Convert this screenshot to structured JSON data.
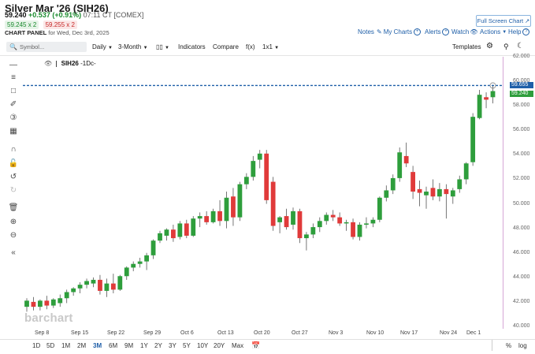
{
  "header": {
    "title": "Silver Mar '26 (SIH26)",
    "last": "59.240",
    "change": "+0.537 (+0.91%)",
    "timestamp": "07:11 CT [COMEX]",
    "bid": "59.245 x 2",
    "ask": "59.255 x 2",
    "panel_label": "CHART PANEL",
    "panel_date": "for Wed, Dec 3rd, 2025",
    "fullscreen": "Full Screen Chart",
    "notes": "Notes",
    "mycharts": "My Charts",
    "alerts": "Alerts",
    "watch": "Watch",
    "actions": "Actions",
    "help": "Help"
  },
  "toolbar": {
    "search_placeholder": "Symbol...",
    "interval": "Daily",
    "period": "3-Month",
    "indicators": "Indicators",
    "compare": "Compare",
    "fx": "f(x)",
    "layout": "1x1",
    "templates": "Templates"
  },
  "legend": {
    "symbol": "SIH26",
    "interval": "-1Dc-"
  },
  "watermark": "barchart",
  "yaxis": {
    "labels": [
      "62.000",
      "60.000",
      "58.000",
      "56.000",
      "54.000",
      "52.000",
      "50.000",
      "48.000",
      "46.000",
      "44.000",
      "42.000",
      "40.000"
    ],
    "high_label": "59.655",
    "last_label": "59.240"
  },
  "xaxis": {
    "labels": [
      "Sep 8",
      "Sep 15",
      "Sep 22",
      "Sep 29",
      "Oct 6",
      "Oct 13",
      "Oct 20",
      "Oct 27",
      "Nov 3",
      "Nov 10",
      "Nov 17",
      "Nov 24",
      "Dec 1"
    ]
  },
  "ranges": [
    "1D",
    "5D",
    "1M",
    "2M",
    "3M",
    "6M",
    "9M",
    "1Y",
    "2Y",
    "3Y",
    "5Y",
    "10Y",
    "20Y",
    "Max"
  ],
  "active_range": "3M",
  "bottom_right": {
    "percent": "%",
    "log": "log"
  },
  "colors": {
    "up": "#2e9e3c",
    "down": "#e03a3a",
    "link": "#1f5fa8",
    "dashed": "#1f5fa8"
  },
  "chart_data": {
    "type": "candlestick",
    "ylim": [
      40,
      62
    ],
    "candles": [
      {
        "o": 41.6,
        "h": 42.3,
        "l": 41.2,
        "c": 42.1
      },
      {
        "o": 42.0,
        "h": 42.4,
        "l": 41.3,
        "c": 41.6
      },
      {
        "o": 41.6,
        "h": 42.2,
        "l": 41.3,
        "c": 42.1
      },
      {
        "o": 42.1,
        "h": 42.5,
        "l": 41.4,
        "c": 41.7
      },
      {
        "o": 41.7,
        "h": 42.3,
        "l": 41.5,
        "c": 42.2
      },
      {
        "o": 41.9,
        "h": 42.6,
        "l": 41.6,
        "c": 42.3
      },
      {
        "o": 42.3,
        "h": 43.0,
        "l": 41.9,
        "c": 42.8
      },
      {
        "o": 42.8,
        "h": 43.2,
        "l": 42.5,
        "c": 43.1
      },
      {
        "o": 43.1,
        "h": 43.6,
        "l": 42.7,
        "c": 43.4
      },
      {
        "o": 43.4,
        "h": 43.9,
        "l": 43.1,
        "c": 43.7
      },
      {
        "o": 43.5,
        "h": 44.0,
        "l": 43.2,
        "c": 43.8
      },
      {
        "o": 43.8,
        "h": 44.2,
        "l": 42.6,
        "c": 42.9
      },
      {
        "o": 42.9,
        "h": 43.9,
        "l": 42.4,
        "c": 43.5
      },
      {
        "o": 43.5,
        "h": 44.3,
        "l": 42.7,
        "c": 43.0
      },
      {
        "o": 43.0,
        "h": 44.2,
        "l": 42.9,
        "c": 44.1
      },
      {
        "o": 44.1,
        "h": 44.9,
        "l": 43.8,
        "c": 44.8
      },
      {
        "o": 44.8,
        "h": 45.3,
        "l": 44.5,
        "c": 45.1
      },
      {
        "o": 45.1,
        "h": 45.6,
        "l": 44.8,
        "c": 45.3
      },
      {
        "o": 45.3,
        "h": 46.0,
        "l": 44.6,
        "c": 45.8
      },
      {
        "o": 45.8,
        "h": 47.1,
        "l": 45.5,
        "c": 47.0
      },
      {
        "o": 47.0,
        "h": 47.8,
        "l": 46.8,
        "c": 47.6
      },
      {
        "o": 47.4,
        "h": 48.0,
        "l": 47.0,
        "c": 47.9
      },
      {
        "o": 47.9,
        "h": 48.3,
        "l": 46.9,
        "c": 47.2
      },
      {
        "o": 47.3,
        "h": 48.6,
        "l": 47.1,
        "c": 48.4
      },
      {
        "o": 48.4,
        "h": 48.7,
        "l": 47.2,
        "c": 47.4
      },
      {
        "o": 47.4,
        "h": 49.0,
        "l": 47.3,
        "c": 48.8
      },
      {
        "o": 48.8,
        "h": 49.3,
        "l": 48.1,
        "c": 49.0
      },
      {
        "o": 49.0,
        "h": 49.4,
        "l": 48.3,
        "c": 48.5
      },
      {
        "o": 48.5,
        "h": 49.6,
        "l": 48.4,
        "c": 49.4
      },
      {
        "o": 49.4,
        "h": 50.3,
        "l": 48.2,
        "c": 48.6
      },
      {
        "o": 48.6,
        "h": 51.0,
        "l": 48.0,
        "c": 50.5
      },
      {
        "o": 50.6,
        "h": 51.3,
        "l": 48.2,
        "c": 48.9
      },
      {
        "o": 48.9,
        "h": 51.8,
        "l": 48.6,
        "c": 51.6
      },
      {
        "o": 51.6,
        "h": 52.5,
        "l": 51.2,
        "c": 52.2
      },
      {
        "o": 52.2,
        "h": 53.9,
        "l": 51.9,
        "c": 53.5
      },
      {
        "o": 53.6,
        "h": 54.4,
        "l": 52.9,
        "c": 54.1
      },
      {
        "o": 54.1,
        "h": 54.4,
        "l": 50.0,
        "c": 50.3
      },
      {
        "o": 51.8,
        "h": 52.2,
        "l": 47.8,
        "c": 48.2
      },
      {
        "o": 48.5,
        "h": 49.0,
        "l": 47.6,
        "c": 48.9
      },
      {
        "o": 49.0,
        "h": 49.6,
        "l": 47.9,
        "c": 48.1
      },
      {
        "o": 48.3,
        "h": 49.7,
        "l": 47.9,
        "c": 49.4
      },
      {
        "o": 49.4,
        "h": 49.6,
        "l": 46.8,
        "c": 47.2
      },
      {
        "o": 47.2,
        "h": 47.7,
        "l": 46.2,
        "c": 47.5
      },
      {
        "o": 47.5,
        "h": 48.4,
        "l": 47.2,
        "c": 48.1
      },
      {
        "o": 48.1,
        "h": 48.9,
        "l": 47.7,
        "c": 48.6
      },
      {
        "o": 48.6,
        "h": 49.3,
        "l": 48.3,
        "c": 49.1
      },
      {
        "o": 49.1,
        "h": 49.5,
        "l": 48.6,
        "c": 48.9
      },
      {
        "o": 48.9,
        "h": 49.3,
        "l": 48.2,
        "c": 48.4
      },
      {
        "o": 48.4,
        "h": 48.7,
        "l": 47.8,
        "c": 48.5
      },
      {
        "o": 48.5,
        "h": 48.8,
        "l": 47.1,
        "c": 47.3
      },
      {
        "o": 47.3,
        "h": 48.5,
        "l": 47.0,
        "c": 48.3
      },
      {
        "o": 48.3,
        "h": 48.9,
        "l": 48.0,
        "c": 48.4
      },
      {
        "o": 48.4,
        "h": 48.9,
        "l": 48.1,
        "c": 48.7
      },
      {
        "o": 48.7,
        "h": 50.6,
        "l": 48.5,
        "c": 50.5
      },
      {
        "o": 50.5,
        "h": 51.5,
        "l": 50.2,
        "c": 51.1
      },
      {
        "o": 51.1,
        "h": 52.4,
        "l": 50.8,
        "c": 52.1
      },
      {
        "o": 52.1,
        "h": 54.6,
        "l": 51.8,
        "c": 54.2
      },
      {
        "o": 53.9,
        "h": 55.0,
        "l": 53.0,
        "c": 53.3
      },
      {
        "o": 52.6,
        "h": 53.1,
        "l": 50.4,
        "c": 51.0
      },
      {
        "o": 51.2,
        "h": 51.9,
        "l": 49.8,
        "c": 50.9
      },
      {
        "o": 50.7,
        "h": 51.4,
        "l": 49.6,
        "c": 51.0
      },
      {
        "o": 51.3,
        "h": 52.0,
        "l": 50.3,
        "c": 50.6
      },
      {
        "o": 50.6,
        "h": 51.7,
        "l": 50.2,
        "c": 51.2
      },
      {
        "o": 51.2,
        "h": 51.6,
        "l": 48.8,
        "c": 50.8
      },
      {
        "o": 50.6,
        "h": 51.3,
        "l": 50.0,
        "c": 51.1
      },
      {
        "o": 51.2,
        "h": 52.3,
        "l": 50.9,
        "c": 52.0
      },
      {
        "o": 52.0,
        "h": 53.4,
        "l": 51.6,
        "c": 53.3
      },
      {
        "o": 53.4,
        "h": 57.4,
        "l": 53.1,
        "c": 57.1
      },
      {
        "o": 57.0,
        "h": 59.3,
        "l": 56.9,
        "c": 58.9
      },
      {
        "o": 58.7,
        "h": 59.1,
        "l": 57.8,
        "c": 58.5
      },
      {
        "o": 58.7,
        "h": 59.7,
        "l": 58.2,
        "c": 59.2
      }
    ],
    "dashed_line": 59.655,
    "last": 59.24
  }
}
